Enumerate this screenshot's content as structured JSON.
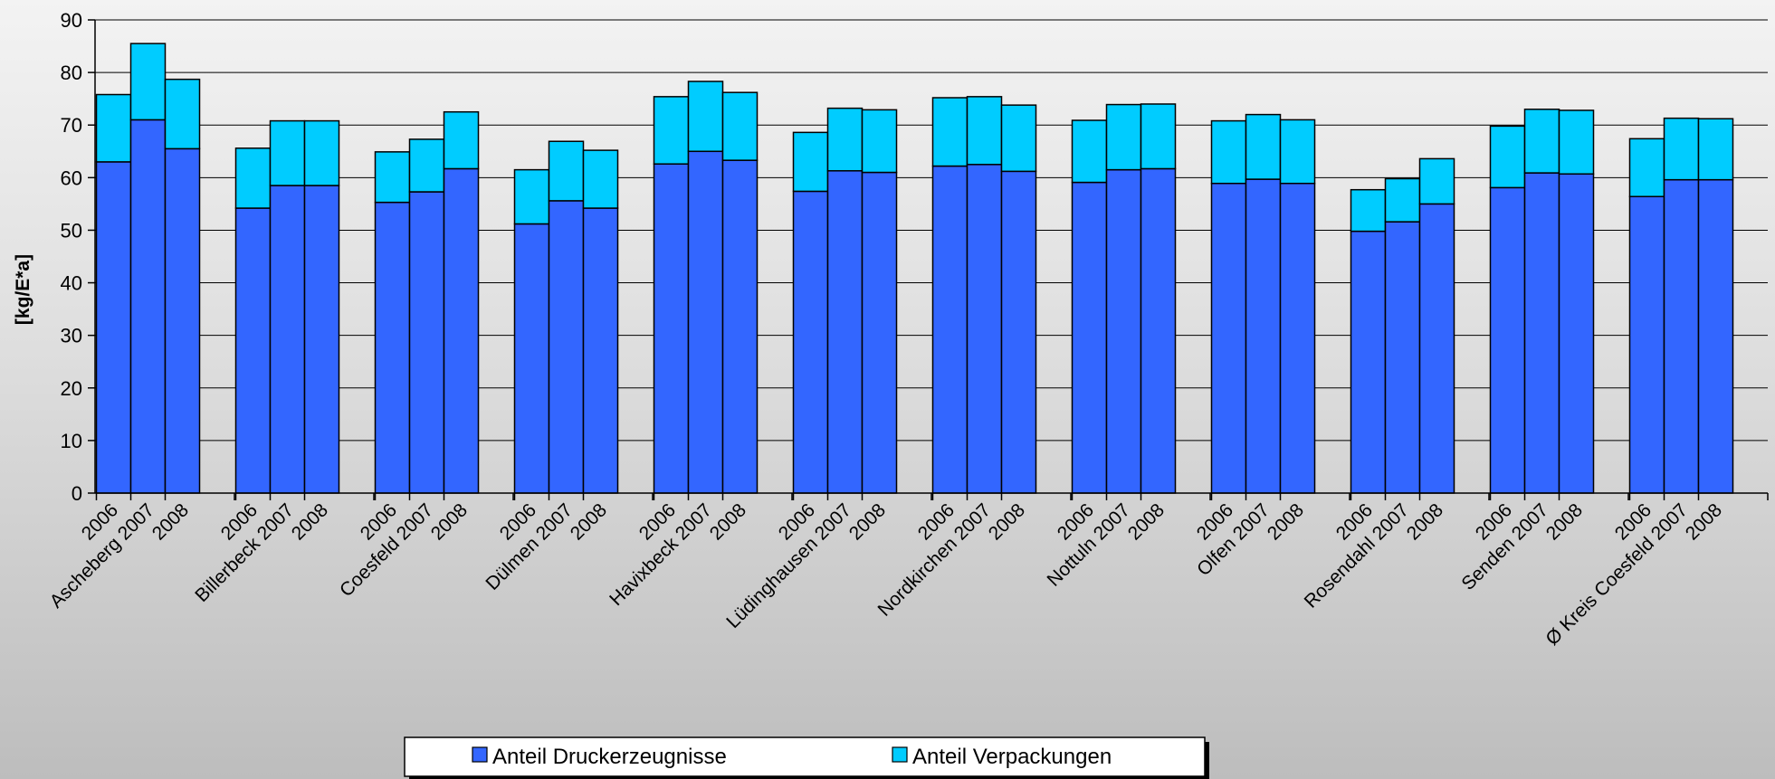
{
  "chart_data": {
    "type": "bar",
    "stacked": true,
    "ylabel": "[kg/E*a]",
    "ylim": [
      0,
      90
    ],
    "yticks": [
      0,
      10,
      20,
      30,
      40,
      50,
      60,
      70,
      80,
      90
    ],
    "grid": true,
    "legend_position": "bottom",
    "colors": {
      "druck": "#3366ff",
      "verpack": "#00ccff",
      "outline": "#000000"
    },
    "years": [
      "2006",
      "2007",
      "2008"
    ],
    "groups": [
      {
        "name": "Ascheberg",
        "druck": [
          63.0,
          71.0,
          65.5
        ],
        "total": [
          75.8,
          85.5,
          78.7
        ]
      },
      {
        "name": "Billerbeck",
        "druck": [
          54.2,
          58.5,
          58.5
        ],
        "total": [
          65.6,
          70.8,
          70.8
        ]
      },
      {
        "name": "Coesfeld",
        "druck": [
          55.3,
          57.3,
          61.7
        ],
        "total": [
          64.9,
          67.3,
          72.5
        ]
      },
      {
        "name": "Dülmen",
        "druck": [
          51.2,
          55.6,
          54.2
        ],
        "total": [
          61.5,
          66.9,
          65.2
        ]
      },
      {
        "name": "Havixbeck",
        "druck": [
          62.6,
          65.0,
          63.3
        ],
        "total": [
          75.4,
          78.3,
          76.2
        ]
      },
      {
        "name": "Lüdinghausen",
        "druck": [
          57.4,
          61.3,
          61.0
        ],
        "total": [
          68.6,
          73.2,
          72.9
        ]
      },
      {
        "name": "Nordkirchen",
        "druck": [
          62.2,
          62.5,
          61.2
        ],
        "total": [
          75.2,
          75.4,
          73.8
        ]
      },
      {
        "name": "Nottuln",
        "druck": [
          59.1,
          61.5,
          61.7
        ],
        "total": [
          70.9,
          73.9,
          74.0
        ]
      },
      {
        "name": "Olfen",
        "druck": [
          58.9,
          59.7,
          58.9
        ],
        "total": [
          70.8,
          72.0,
          71.0
        ]
      },
      {
        "name": "Rosendahl",
        "druck": [
          49.8,
          51.6,
          55.0
        ],
        "total": [
          57.7,
          59.8,
          63.6
        ]
      },
      {
        "name": "Senden",
        "druck": [
          58.1,
          60.9,
          60.7
        ],
        "total": [
          69.8,
          73.0,
          72.8
        ]
      },
      {
        "name": "Ø Kreis Coesfeld",
        "druck": [
          56.4,
          59.6,
          59.6
        ],
        "total": [
          67.4,
          71.3,
          71.2
        ]
      }
    ],
    "series": [
      {
        "key": "druck",
        "name": "Anteil Druckerzeugnisse"
      },
      {
        "key": "verpack",
        "name": "Anteil  Verpackungen"
      }
    ]
  }
}
